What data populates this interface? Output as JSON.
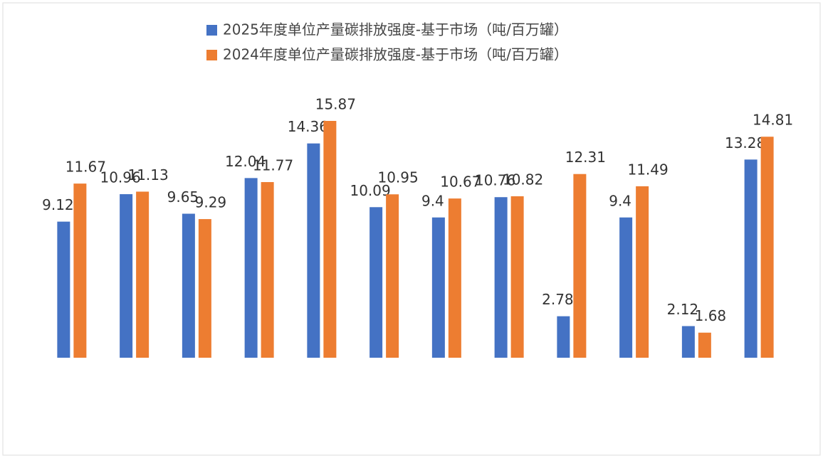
{
  "chart_data": {
    "type": "bar",
    "categories": [
      null,
      null,
      null,
      null,
      null,
      null,
      null,
      null,
      null,
      null,
      null,
      null
    ],
    "series": [
      {
        "name": "2025年度单位产量碳排放强度-基于市场（吨/百万罐）",
        "color": "#4472c4",
        "values": [
          9.12,
          10.96,
          9.65,
          12.04,
          14.36,
          10.09,
          9.4,
          10.76,
          2.78,
          9.4,
          2.12,
          13.28
        ]
      },
      {
        "name": "2024年度单位产量碳排放强度-基于市场（吨/百万罐）",
        "color": "#ed7d31",
        "values": [
          11.67,
          11.13,
          9.29,
          11.77,
          15.87,
          10.95,
          10.67,
          10.82,
          12.31,
          11.49,
          1.68,
          14.81
        ]
      }
    ]
  }
}
